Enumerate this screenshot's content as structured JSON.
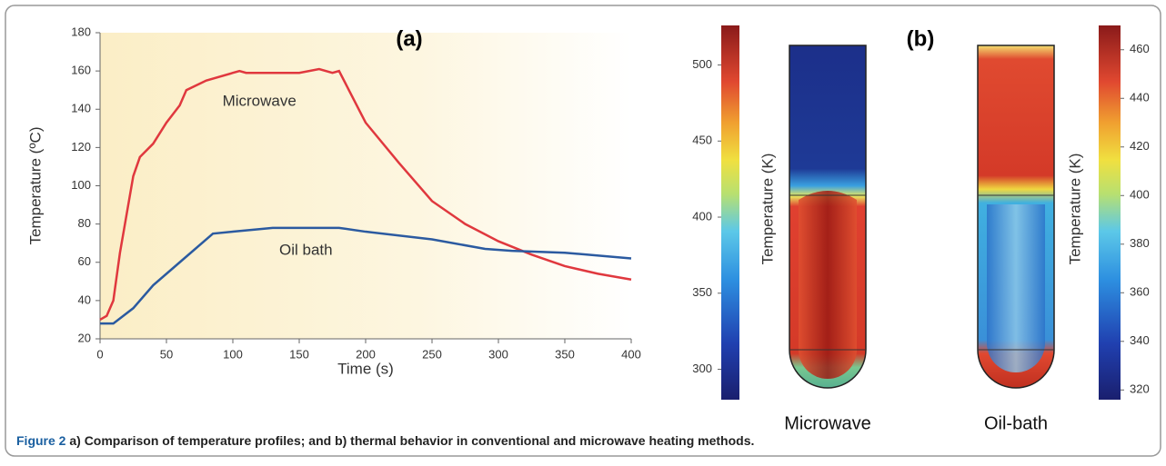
{
  "chart_data": [
    {
      "type": "line",
      "title": "(a)",
      "x_label": "Time (s)",
      "y_label": "Temperature (ºC)",
      "xlim": [
        0,
        400
      ],
      "ylim": [
        20,
        180
      ],
      "xticks": [
        0,
        50,
        100,
        150,
        200,
        250,
        300,
        350,
        400
      ],
      "yticks": [
        20,
        40,
        60,
        80,
        100,
        120,
        140,
        160,
        180
      ],
      "series": [
        {
          "name": "Microwave",
          "color": "#e0383e",
          "x": [
            0,
            5,
            10,
            15,
            20,
            25,
            30,
            40,
            50,
            60,
            65,
            80,
            100,
            105,
            110,
            150,
            165,
            175,
            180,
            200,
            225,
            250,
            275,
            300,
            325,
            350,
            375,
            400
          ],
          "values": [
            30,
            32,
            40,
            65,
            85,
            105,
            115,
            122,
            133,
            142,
            150,
            155,
            159,
            160,
            159,
            159,
            161,
            159,
            160,
            133,
            112,
            92,
            80,
            71,
            64,
            58,
            54,
            51
          ]
        },
        {
          "name": "Oil bath",
          "color": "#2b5aa0",
          "x": [
            0,
            10,
            25,
            40,
            60,
            85,
            100,
            130,
            180,
            200,
            250,
            290,
            310,
            350,
            400
          ],
          "values": [
            28,
            28,
            36,
            48,
            60,
            75,
            76,
            78,
            78,
            76,
            72,
            67,
            66,
            65,
            62
          ]
        }
      ],
      "label_positions": [
        [
          120,
          144
        ],
        [
          155,
          66
        ]
      ]
    },
    {
      "type": "colorbar",
      "title": "(b)",
      "categories": [
        "Microwave",
        "Oil-bath"
      ],
      "colorbars": [
        {
          "label": "Temperature (K)",
          "ylim": [
            280,
            526
          ],
          "yticks": [
            300,
            350,
            400,
            450,
            500
          ]
        },
        {
          "label": "Temperature (K)",
          "ylim": [
            316,
            470
          ],
          "yticks": [
            320,
            340,
            360,
            380,
            400,
            420,
            440,
            460
          ]
        }
      ]
    }
  ],
  "caption": {
    "label": "Figure 2",
    "text": " a) Comparison of temperature profiles; and  b) thermal behavior in conventional and microwave heating methods."
  }
}
